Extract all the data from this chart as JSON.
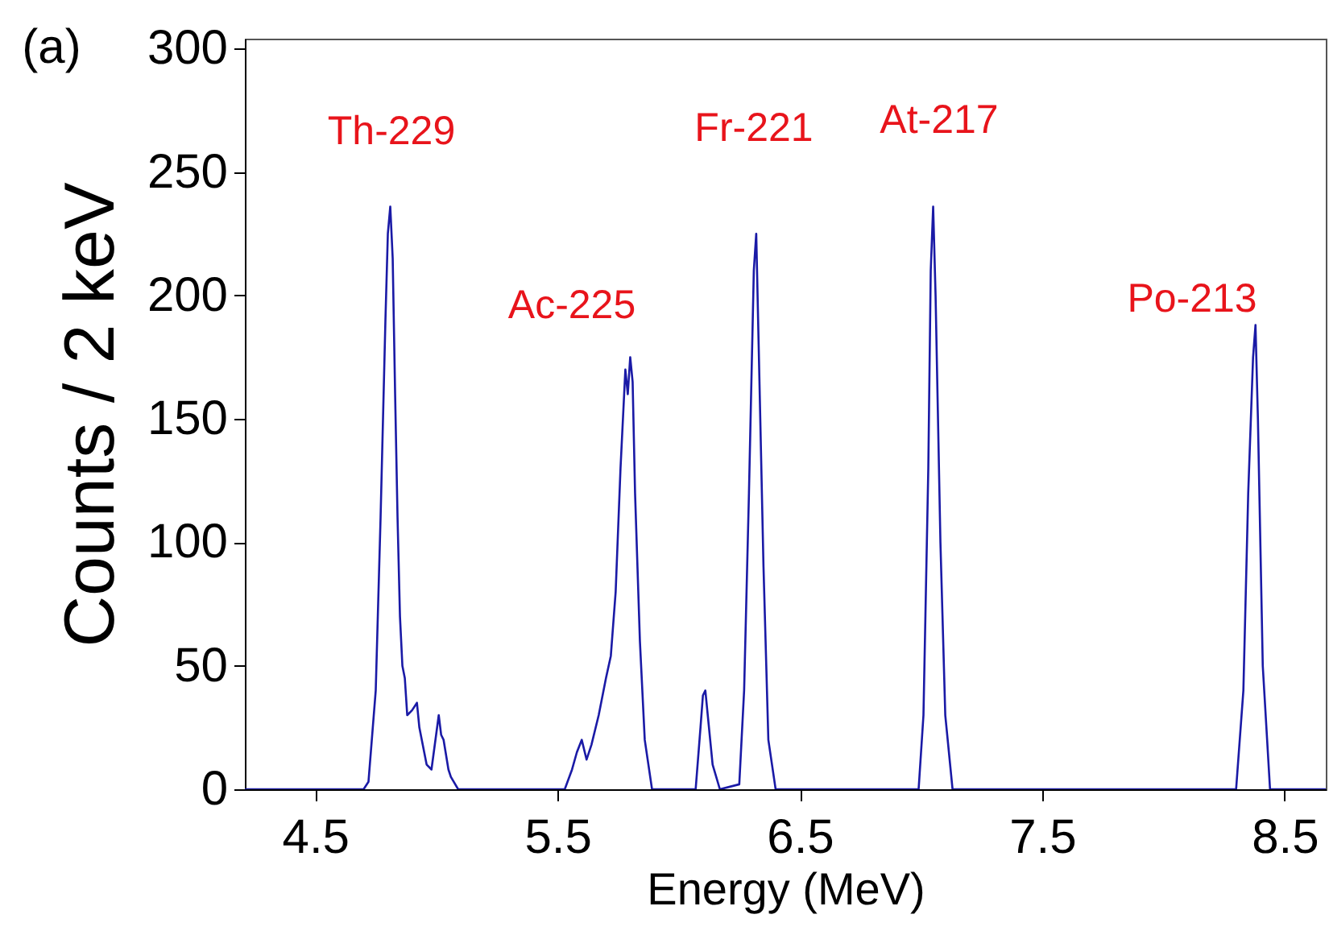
{
  "chart_data": {
    "type": "line",
    "xlabel": "Energy (MeV)",
    "ylabel": "Counts / 2 keV",
    "xlim": [
      4.21,
      8.67
    ],
    "xticks": [
      4.5,
      5.5,
      6.5,
      7.5,
      8.5
    ],
    "ylim": [
      0,
      304
    ],
    "yticks": [
      0,
      50,
      100,
      150,
      200,
      250,
      300
    ],
    "grid": false,
    "series": [
      {
        "color": "#1a1aa6",
        "x": [
          4.21,
          4.7,
          4.72,
          4.75,
          4.77,
          4.79,
          4.8,
          4.81,
          4.82,
          4.83,
          4.84,
          4.85,
          4.86,
          4.87,
          4.88,
          4.9,
          4.92,
          4.93,
          4.95,
          4.96,
          4.98,
          5.01,
          5.02,
          5.03,
          5.05,
          5.06,
          5.09,
          5.53,
          5.56,
          5.58,
          5.6,
          5.62,
          5.64,
          5.67,
          5.7,
          5.72,
          5.74,
          5.76,
          5.78,
          5.79,
          5.8,
          5.81,
          5.82,
          5.84,
          5.86,
          5.89,
          6.07,
          6.09,
          6.1,
          6.11,
          6.12,
          6.14,
          6.17,
          6.25,
          6.27,
          6.29,
          6.31,
          6.32,
          6.33,
          6.35,
          6.37,
          6.4,
          6.99,
          7.01,
          7.03,
          7.04,
          7.05,
          7.06,
          7.08,
          7.1,
          7.13,
          8.3,
          8.33,
          8.35,
          8.37,
          8.38,
          8.39,
          8.41,
          8.44,
          8.67
        ],
        "values": [
          0,
          0,
          3,
          40,
          110,
          190,
          225,
          236,
          215,
          160,
          110,
          70,
          50,
          45,
          30,
          32,
          35,
          25,
          15,
          10,
          8,
          30,
          22,
          20,
          8,
          5,
          0,
          0,
          8,
          15,
          20,
          12,
          18,
          30,
          45,
          54,
          80,
          130,
          170,
          160,
          175,
          165,
          120,
          60,
          20,
          0,
          0,
          25,
          38,
          40,
          30,
          10,
          0,
          2,
          40,
          120,
          210,
          225,
          180,
          90,
          20,
          0,
          0,
          30,
          130,
          210,
          236,
          200,
          100,
          30,
          0,
          0,
          40,
          120,
          175,
          188,
          150,
          50,
          0,
          0
        ]
      }
    ],
    "annotations": [
      "(a)",
      "Th-229",
      "Ac-225",
      "Fr-221",
      "At-217",
      "Po-213"
    ]
  }
}
